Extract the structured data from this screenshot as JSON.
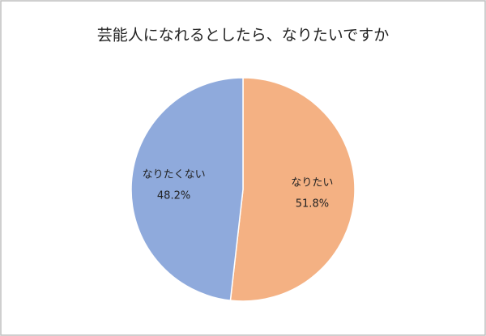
{
  "chart_data": {
    "type": "pie",
    "title": "芸能人になれるとしたら、なりたいですか",
    "categories": [
      "なりたい",
      "なりたくない"
    ],
    "values": [
      51.8,
      48.2
    ],
    "value_labels": [
      "51.8%",
      "48.2%"
    ],
    "colors": [
      "#f4b183",
      "#8faadc"
    ]
  }
}
